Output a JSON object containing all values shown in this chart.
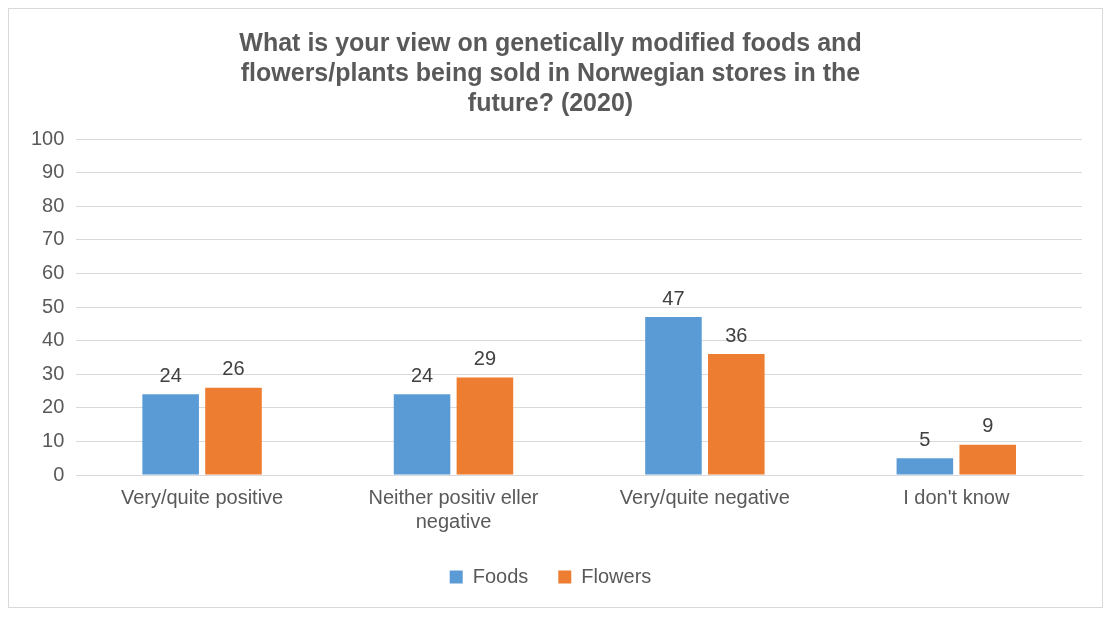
{
  "chart_data": {
    "type": "bar",
    "title": "What is your view on genetically modified foods and flowers/plants being sold in Norwegian stores in the future? (2020)",
    "categories": [
      "Very/quite positive",
      "Neither positiv eller negative",
      "Very/quite negative",
      "I don't know"
    ],
    "series": [
      {
        "name": "Foods",
        "color": "#5b9bd5",
        "values": [
          24,
          24,
          47,
          5
        ]
      },
      {
        "name": "Flowers",
        "color": "#ed7d31",
        "values": [
          26,
          29,
          36,
          9
        ]
      }
    ],
    "ylim": [
      0,
      100
    ],
    "yticks": [
      0,
      10,
      20,
      30,
      40,
      50,
      60,
      70,
      80,
      90,
      100
    ],
    "grid": "y",
    "legend": "bottom",
    "data_labels": true
  }
}
